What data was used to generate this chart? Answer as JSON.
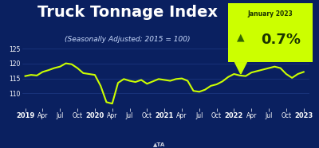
{
  "title": "Truck Tonnage Index",
  "subtitle": "(Seasonally Adjusted; 2015 = 100)",
  "badge_label": "January 2023",
  "badge_value": "0.7%",
  "bg_color": "#0a2060",
  "line_color": "#ccff00",
  "grid_color": "#3355aa",
  "title_color": "#ffffff",
  "subtitle_color": "#ccddff",
  "badge_bg": "#ccff00",
  "badge_text_color": "#1a3300",
  "arrow_color": "#336600",
  "ylim": [
    105,
    126
  ],
  "yticks": [
    110,
    115,
    120,
    125
  ],
  "ytick_labels": [
    "110",
    "115",
    "120",
    "125"
  ],
  "x_labels": [
    "2019",
    "Apr",
    "Jul",
    "Oct",
    "2020",
    "Apr",
    "Jul",
    "Oct",
    "2021",
    "Apr",
    "Jul",
    "Oct",
    "2022",
    "Apr",
    "Jul",
    "Oct",
    "2023"
  ],
  "x_positions": [
    0,
    3,
    6,
    9,
    12,
    15,
    18,
    21,
    24,
    27,
    30,
    33,
    36,
    39,
    42,
    45,
    48
  ],
  "data_x": [
    0,
    1,
    2,
    3,
    4,
    5,
    6,
    7,
    8,
    9,
    10,
    11,
    12,
    13,
    14,
    15,
    16,
    17,
    18,
    19,
    20,
    21,
    22,
    23,
    24,
    25,
    26,
    27,
    28,
    29,
    30,
    31,
    32,
    33,
    34,
    35,
    36,
    37,
    38,
    39,
    40,
    41,
    42,
    43,
    44,
    45,
    46,
    47,
    48
  ],
  "data_y": [
    115.8,
    116.2,
    116.0,
    117.2,
    117.8,
    118.5,
    119.0,
    120.1,
    119.8,
    118.5,
    116.8,
    116.5,
    116.2,
    112.5,
    107.0,
    106.5,
    113.5,
    114.8,
    114.2,
    113.8,
    114.5,
    113.2,
    114.0,
    114.8,
    114.5,
    114.2,
    114.8,
    115.0,
    114.2,
    110.8,
    110.5,
    111.2,
    112.5,
    113.0,
    114.0,
    115.5,
    116.5,
    116.0,
    115.8,
    117.0,
    117.5,
    118.0,
    118.5,
    119.0,
    118.5,
    116.5,
    115.2,
    116.5,
    117.2
  ],
  "title_fontsize": 14,
  "subtitle_fontsize": 6.5,
  "tick_fontsize": 5.5,
  "year_fontsize": 6.0,
  "badge_label_fontsize": 5.5,
  "badge_value_fontsize": 13
}
